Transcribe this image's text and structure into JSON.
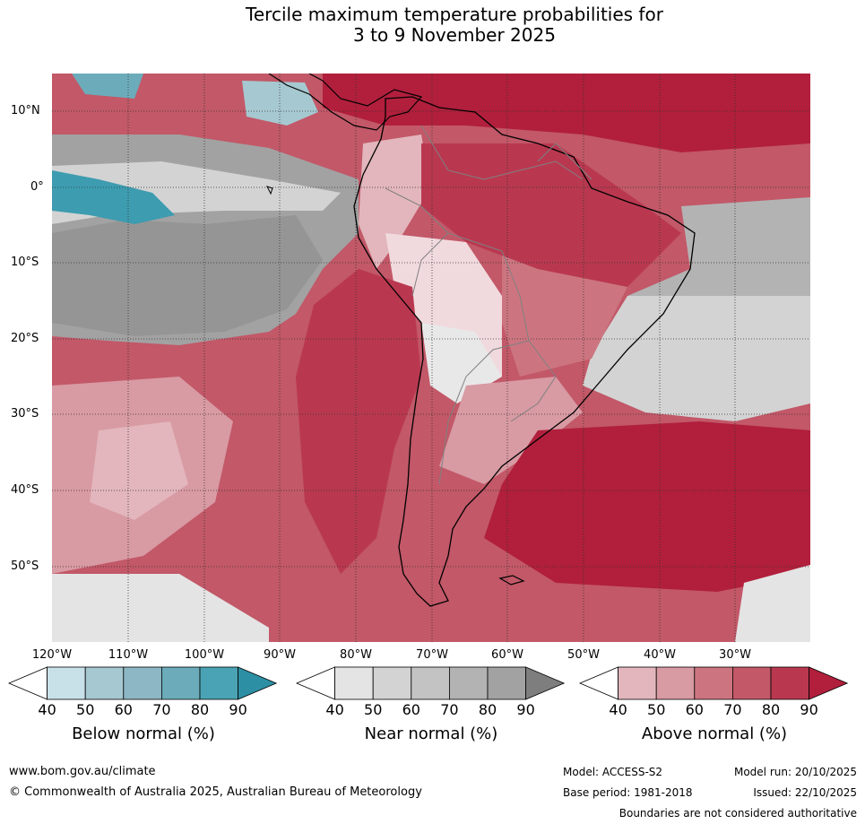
{
  "title": {
    "line1": "Tercile maximum temperature probabilities for",
    "line2": "3 to 9 November 2025"
  },
  "latitude_labels": [
    "10°N",
    "0°",
    "10°S",
    "20°S",
    "30°S",
    "40°S",
    "50°S"
  ],
  "longitude_labels": [
    "120°W",
    "110°W",
    "100°W",
    "90°W",
    "80°W",
    "70°W",
    "60°W",
    "50°W",
    "40°W",
    "30°W"
  ],
  "legends": [
    {
      "title": "Below normal (%)",
      "ticks": [
        "40",
        "50",
        "60",
        "70",
        "80",
        "90"
      ],
      "colors": [
        "#ffffff",
        "#c8e1e8",
        "#a6c8d0",
        "#8db7c4",
        "#6cacba",
        "#4aa3b4",
        "#2d8fa3"
      ]
    },
    {
      "title": "Near normal (%)",
      "ticks": [
        "40",
        "50",
        "60",
        "70",
        "80",
        "90"
      ],
      "colors": [
        "#ffffff",
        "#e4e4e4",
        "#d3d3d3",
        "#c3c3c3",
        "#b3b3b3",
        "#a2a2a2",
        "#7e7e7e"
      ]
    },
    {
      "title": "Above normal (%)",
      "ticks": [
        "40",
        "50",
        "60",
        "70",
        "80",
        "90"
      ],
      "colors": [
        "#ffffff",
        "#e2b6bc",
        "#d89aa3",
        "#cc7580",
        "#c25868",
        "#b93850",
        "#b11f3c"
      ]
    }
  ],
  "footer": {
    "website": "www.bom.gov.au/climate",
    "copyright": "© Commonwealth of Australia 2025, Australian Bureau of Meteorology",
    "model": "Model: ACCESS-S2",
    "base_period": "Base period: 1981-2018",
    "model_run": "Model run: 20/10/2025",
    "issued": "Issued: 22/10/2025",
    "disclaimer": "Boundaries are not considered authoritative"
  }
}
